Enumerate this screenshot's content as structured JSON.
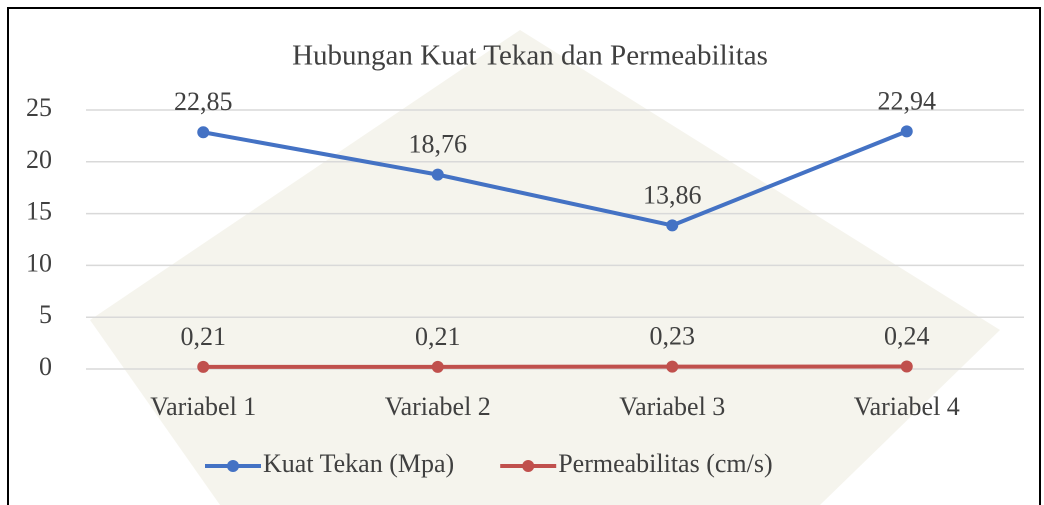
{
  "chart_data": {
    "type": "line",
    "title": "Hubungan Kuat Tekan dan Permeabilitas",
    "categories": [
      "Variabel 1",
      "Variabel 2",
      "Variabel 3",
      "Variabel 4"
    ],
    "series": [
      {
        "name": "Kuat Tekan (Mpa)",
        "color": "#4472c4",
        "values": [
          22.85,
          18.76,
          13.86,
          22.94
        ],
        "value_labels": [
          "22,85",
          "18,76",
          "13,86",
          "22,94"
        ]
      },
      {
        "name": "Permeabilitas (cm/s)",
        "color": "#c0504d",
        "values": [
          0.21,
          0.21,
          0.23,
          0.24
        ],
        "value_labels": [
          "0,21",
          "0,21",
          "0,23",
          "0,24"
        ]
      }
    ],
    "ylim": [
      0,
      25
    ],
    "yticks": [
      0,
      5,
      10,
      15,
      20,
      25
    ],
    "grid": true,
    "legend": "bottom"
  }
}
